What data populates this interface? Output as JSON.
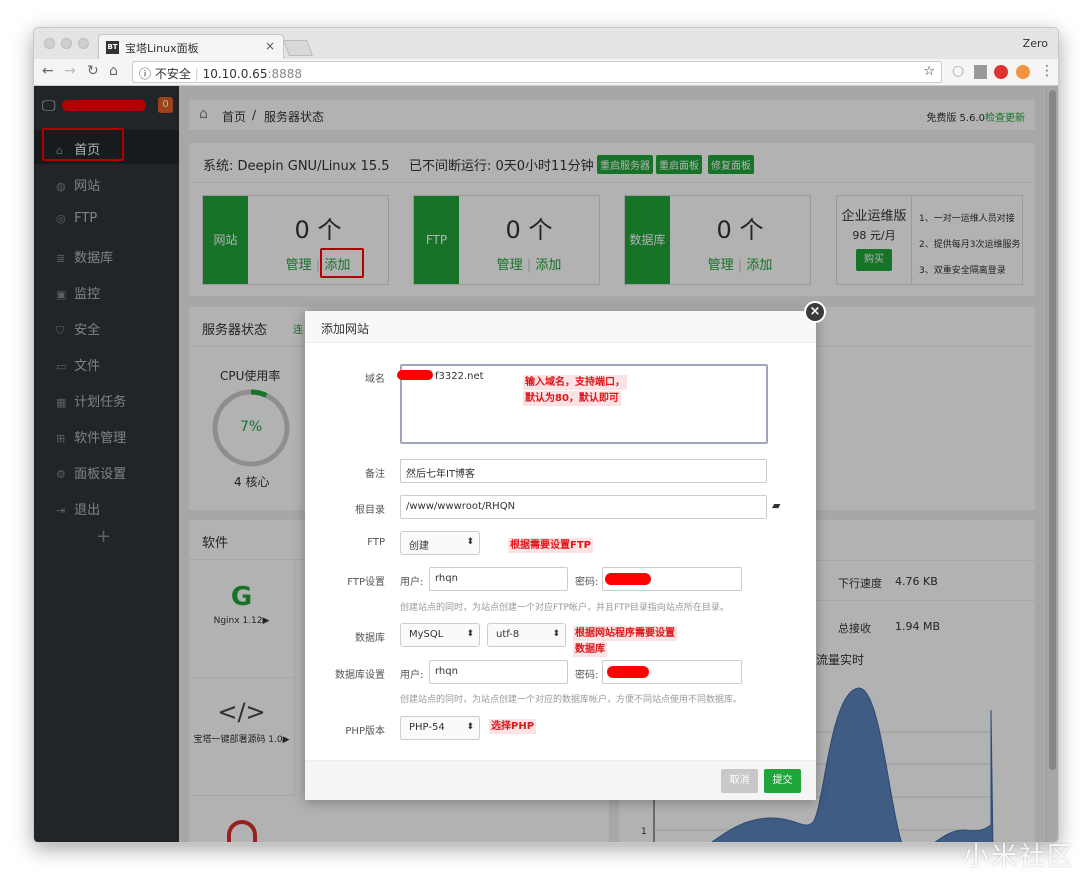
{
  "browser": {
    "tab_title": "宝塔Linux面板",
    "favicon": "BT",
    "profile": "Zero",
    "security": "不安全",
    "url_host": "10.10.0.65",
    "url_port": ":8888"
  },
  "sidebar": {
    "badge": "0",
    "items": [
      {
        "label": "首页",
        "icon": "home-icon"
      },
      {
        "label": "网站",
        "icon": "globe-icon"
      },
      {
        "label": "FTP",
        "icon": "ftp-icon"
      },
      {
        "label": "数据库",
        "icon": "database-icon"
      },
      {
        "label": "监控",
        "icon": "monitor-icon"
      },
      {
        "label": "安全",
        "icon": "shield-icon"
      },
      {
        "label": "文件",
        "icon": "folder-icon"
      },
      {
        "label": "计划任务",
        "icon": "calendar-icon"
      },
      {
        "label": "软件管理",
        "icon": "grid-icon"
      },
      {
        "label": "面板设置",
        "icon": "settings-icon"
      },
      {
        "label": "退出",
        "icon": "logout-icon"
      }
    ],
    "add": "+"
  },
  "breadcrumb": {
    "home": "首页",
    "sep": "/",
    "current": "服务器状态",
    "version": "免费版 5.6.0",
    "check_update": "检查更新"
  },
  "system": {
    "os": "系统: Deepin GNU/Linux 15.5",
    "uptime": "已不间断运行: 0天0小时11分钟",
    "buttons": [
      "重启服务器",
      "重启面板",
      "修复面板"
    ]
  },
  "cards": [
    {
      "label": "网站",
      "count": "0 个",
      "manage": "管理",
      "add": "添加"
    },
    {
      "label": "FTP",
      "count": "0 个",
      "manage": "管理",
      "add": "添加"
    },
    {
      "label": "数据库",
      "count": "0 个",
      "manage": "管理",
      "add": "添加"
    }
  ],
  "enterprise": {
    "title": "企业运维版",
    "price": "98 元/月",
    "buy": "购买",
    "features": [
      "1、一对一运维人员对接",
      "2、提供每月3次运维服务",
      "3、双重安全隔离登录"
    ]
  },
  "server_status": {
    "title": "服务器状态",
    "link": "连",
    "cpu_label": "CPU使用率",
    "cpu_percent": 7,
    "cpu_text": "7%",
    "cores": "4 核心"
  },
  "software": {
    "title": "软件",
    "items": [
      {
        "name": "Nginx 1.12▶"
      },
      {
        "name": "宝塔一键部署源码 1.0▶"
      }
    ]
  },
  "traffic": {
    "down_speed_label": "下行速度",
    "down_speed": "4.76 KB",
    "total_recv_label": "总接收",
    "total_recv": "1.94 MB",
    "chart_title": "流量实时",
    "y_tick": "1"
  },
  "modal": {
    "title": "添加网站",
    "close": "×",
    "domain_label": "域名",
    "domain_value": "f3322.net",
    "note_label": "备注",
    "note_value": "然后七年IT博客",
    "root_label": "根目录",
    "root_value": "/www/wwwroot/RHQN",
    "ftp_label": "FTP",
    "ftp_value": "创建",
    "ftp_settings_label": "FTP设置",
    "user_label": "用户:",
    "ftp_user": "rhqn",
    "pass_label": "密码:",
    "ftp_hint": "创建站点的同时，为站点创建一个对应FTP帐户，并且FTP目录指向站点所在目录。",
    "db_label": "数据库",
    "db_type": "MySQL",
    "db_charset": "utf-8",
    "db_settings_label": "数据库设置",
    "db_user": "rhqn",
    "db_hint": "创建站点的同时，为站点创建一个对应的数据库帐户，方便不同站点使用不同数据库。",
    "php_label": "PHP版本",
    "php_value": "PHP-54",
    "cancel": "取消",
    "submit": "提交"
  },
  "annotations": {
    "domain": "输入域名，支持端口，",
    "domain2": "默认为80，默认即可",
    "ftp": "根据需要设置FTP",
    "db": "根据网站程序需要设置",
    "db2": "数据库",
    "php": "选择PHP"
  },
  "watermark": "小米社区",
  "colors": {
    "accent": "#20a53a",
    "sidebar": "#30353c",
    "annotation": "#e0161c"
  }
}
